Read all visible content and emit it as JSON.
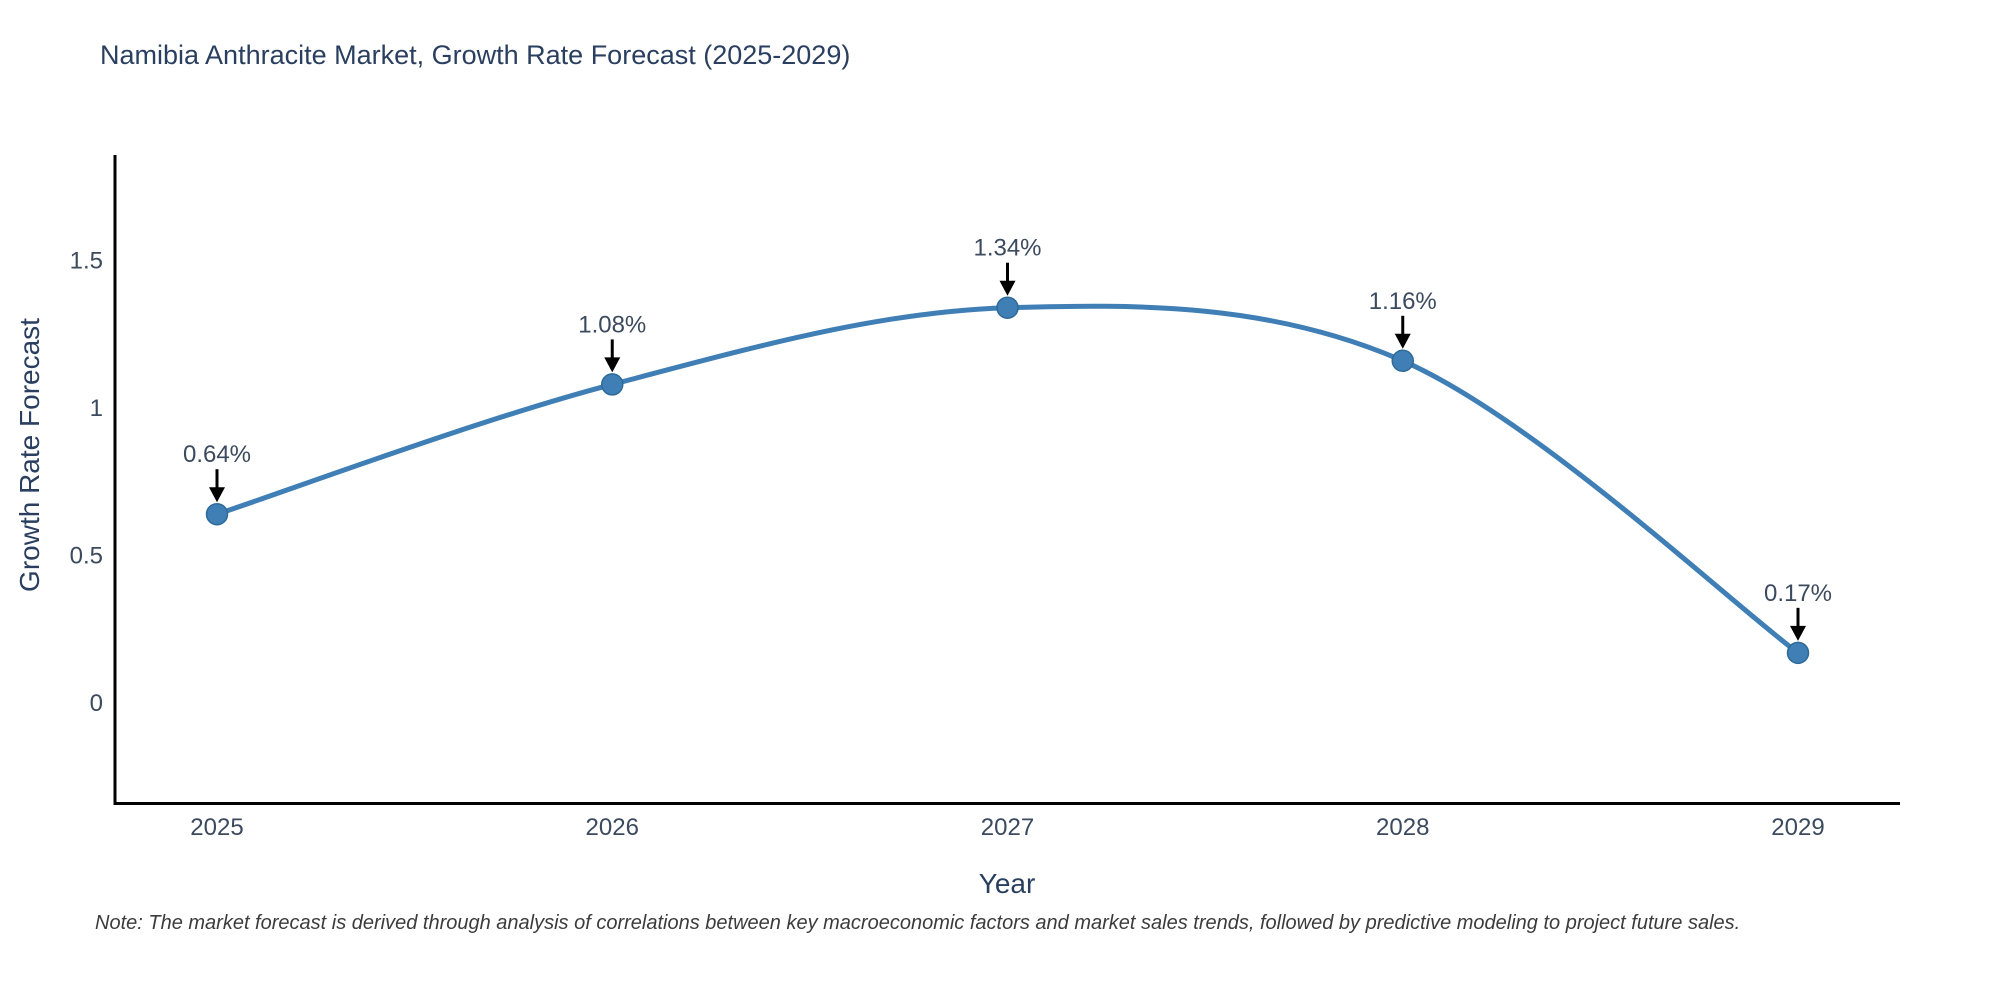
{
  "note": "Note: The market forecast is derived through analysis of correlations between key macroeconomic factors and market sales trends, followed by predictive modeling to project future sales.",
  "chart_data": {
    "type": "line",
    "title": "Namibia Anthracite Market, Growth Rate Forecast (2025-2029)",
    "xlabel": "Year",
    "ylabel": "Growth Rate Forecast",
    "categories": [
      "2025",
      "2026",
      "2027",
      "2028",
      "2029"
    ],
    "values": [
      0.64,
      1.08,
      1.34,
      1.16,
      0.17
    ],
    "point_labels": [
      "0.64%",
      "1.08%",
      "1.34%",
      "1.16%",
      "0.17%"
    ],
    "yticks": [
      0,
      0.5,
      1,
      1.5
    ],
    "ytick_labels": [
      "0",
      "0.5",
      "1",
      "1.5"
    ],
    "ylim": [
      -0.34,
      1.86
    ],
    "grid": false,
    "legend": false,
    "line_shape": "spline",
    "colors": {
      "line": "#3f7fb5",
      "marker": "#3f7fb5",
      "marker_edge": "#2e6a99",
      "arrow": "#000000",
      "axis": "#000000",
      "title_text": "#2a3f5f",
      "tick_text": "#3b4a5e",
      "note_text": "#3c3c3c"
    }
  }
}
